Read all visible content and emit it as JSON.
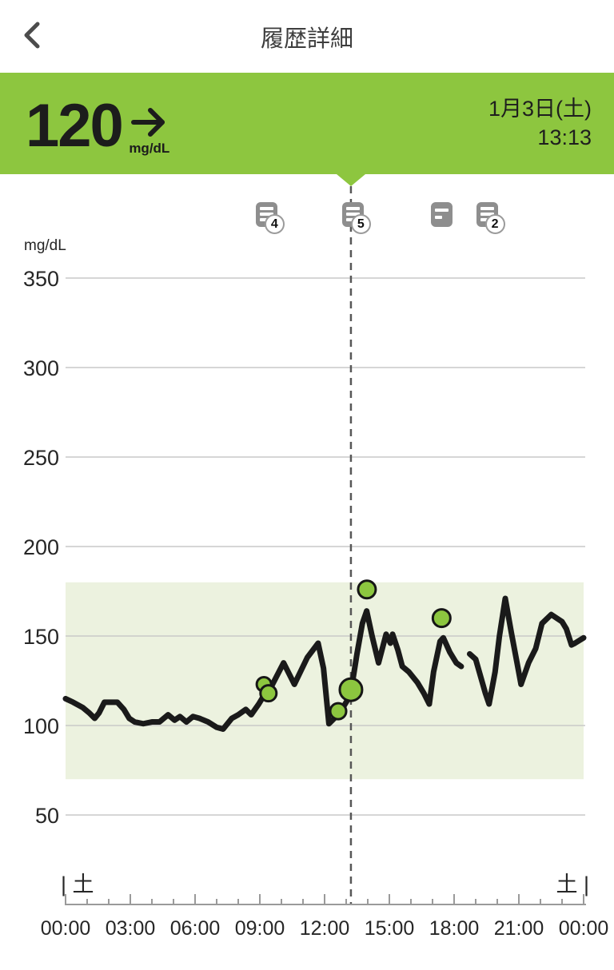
{
  "header": {
    "title": "履歴詳細"
  },
  "banner": {
    "value": "120",
    "unit": "mg/dL",
    "trend": "steady",
    "date": "1月3日(土)",
    "time": "13:13"
  },
  "colors": {
    "accent_green": "#8DC63F",
    "band_green": "#ECF2DF",
    "marker_green": "#8CC63F",
    "trace_black": "#1a1a1a",
    "grid_gray": "#c9c9c9",
    "axis_gray": "#9a9a9a",
    "cursor_gray": "#575757",
    "text_dark": "#262626",
    "icon_gray": "#8e8e8e"
  },
  "notes": [
    {
      "badge": "4",
      "hour": 9.31,
      "lines": 3
    },
    {
      "badge": "5",
      "hour": 13.31,
      "lines": 3
    },
    {
      "badge": "",
      "hour": 17.44,
      "lines": 2
    },
    {
      "badge": "2",
      "hour": 19.52,
      "lines": 3
    }
  ],
  "chart_data": {
    "type": "line",
    "title": "24-hour glucose history",
    "ylabel": "mg/dL",
    "xlabel": "",
    "ylim": [
      30,
      380
    ],
    "xlim_hours": [
      0,
      24
    ],
    "grid": true,
    "y_ticks": [
      50,
      100,
      150,
      200,
      250,
      300,
      350
    ],
    "x_ticks": [
      {
        "hour": 0,
        "label": "00:00"
      },
      {
        "hour": 3,
        "label": "03:00"
      },
      {
        "hour": 6,
        "label": "06:00"
      },
      {
        "hour": 9,
        "label": "09:00"
      },
      {
        "hour": 12,
        "label": "12:00"
      },
      {
        "hour": 15,
        "label": "15:00"
      },
      {
        "hour": 18,
        "label": "18:00"
      },
      {
        "hour": 21,
        "label": "21:00"
      },
      {
        "hour": 24,
        "label": "00:00"
      }
    ],
    "target_range": [
      70,
      180
    ],
    "day_label_left": "| 土",
    "day_label_right": "土 |",
    "selected": {
      "hour": 13.22,
      "value": 120
    },
    "series": [
      {
        "name": "glucose-segment-1",
        "points": [
          [
            0,
            115
          ],
          [
            0.35,
            113
          ],
          [
            0.8,
            110
          ],
          [
            1.1,
            107
          ],
          [
            1.35,
            104
          ],
          [
            1.55,
            107
          ],
          [
            1.8,
            113
          ],
          [
            2.4,
            113
          ],
          [
            2.7,
            109
          ],
          [
            2.95,
            104
          ],
          [
            3.2,
            102
          ],
          [
            3.6,
            101
          ],
          [
            4.0,
            102
          ],
          [
            4.35,
            102
          ],
          [
            4.75,
            106
          ],
          [
            5.05,
            103
          ],
          [
            5.3,
            105
          ],
          [
            5.6,
            102
          ],
          [
            5.9,
            105
          ],
          [
            6.2,
            104
          ],
          [
            6.6,
            102
          ],
          [
            7.0,
            99
          ],
          [
            7.3,
            98
          ],
          [
            7.7,
            104
          ],
          [
            8.0,
            106
          ],
          [
            8.35,
            109
          ],
          [
            8.6,
            106
          ],
          [
            8.95,
            112
          ],
          [
            9.2,
            117
          ],
          [
            9.5,
            121
          ],
          [
            10.1,
            135
          ],
          [
            10.6,
            123
          ],
          [
            11.2,
            138
          ],
          [
            11.7,
            146
          ],
          [
            11.95,
            132
          ],
          [
            12.2,
            101
          ],
          [
            12.45,
            104
          ],
          [
            12.65,
            107
          ],
          [
            12.9,
            111
          ],
          [
            13.1,
            115
          ],
          [
            13.25,
            121
          ],
          [
            13.5,
            140
          ],
          [
            13.75,
            157
          ],
          [
            13.95,
            164
          ],
          [
            14.2,
            150
          ],
          [
            14.5,
            135
          ],
          [
            14.85,
            151
          ],
          [
            15.05,
            146
          ],
          [
            15.15,
            151
          ],
          [
            15.4,
            142
          ],
          [
            15.6,
            133
          ],
          [
            15.9,
            130
          ],
          [
            16.3,
            124
          ],
          [
            16.6,
            118
          ],
          [
            16.85,
            112
          ],
          [
            17.05,
            130
          ],
          [
            17.35,
            147
          ],
          [
            17.5,
            149
          ],
          [
            17.8,
            141
          ],
          [
            18.1,
            135
          ],
          [
            18.33,
            133
          ]
        ]
      },
      {
        "name": "glucose-segment-2",
        "points": [
          [
            18.72,
            140
          ],
          [
            19.0,
            137
          ],
          [
            19.45,
            118
          ],
          [
            19.62,
            112
          ],
          [
            19.9,
            130
          ],
          [
            20.1,
            150
          ],
          [
            20.37,
            171
          ],
          [
            20.65,
            152
          ],
          [
            20.9,
            136
          ],
          [
            21.1,
            123
          ],
          [
            21.45,
            135
          ],
          [
            21.78,
            143
          ],
          [
            22.07,
            157
          ],
          [
            22.5,
            162
          ],
          [
            23.0,
            158
          ],
          [
            23.2,
            154
          ],
          [
            23.44,
            145
          ],
          [
            23.6,
            146
          ],
          [
            24.0,
            149
          ]
        ]
      }
    ],
    "markers": [
      {
        "hour": 9.19,
        "value": 123,
        "r": 9,
        "selected": false
      },
      {
        "hour": 9.4,
        "value": 118,
        "r": 10,
        "selected": false
      },
      {
        "hour": 12.63,
        "value": 108,
        "r": 10,
        "selected": false
      },
      {
        "hour": 13.22,
        "value": 120,
        "r": 14,
        "selected": true
      },
      {
        "hour": 13.96,
        "value": 176,
        "r": 11,
        "selected": false
      },
      {
        "hour": 17.42,
        "value": 160,
        "r": 11,
        "selected": false
      }
    ]
  }
}
